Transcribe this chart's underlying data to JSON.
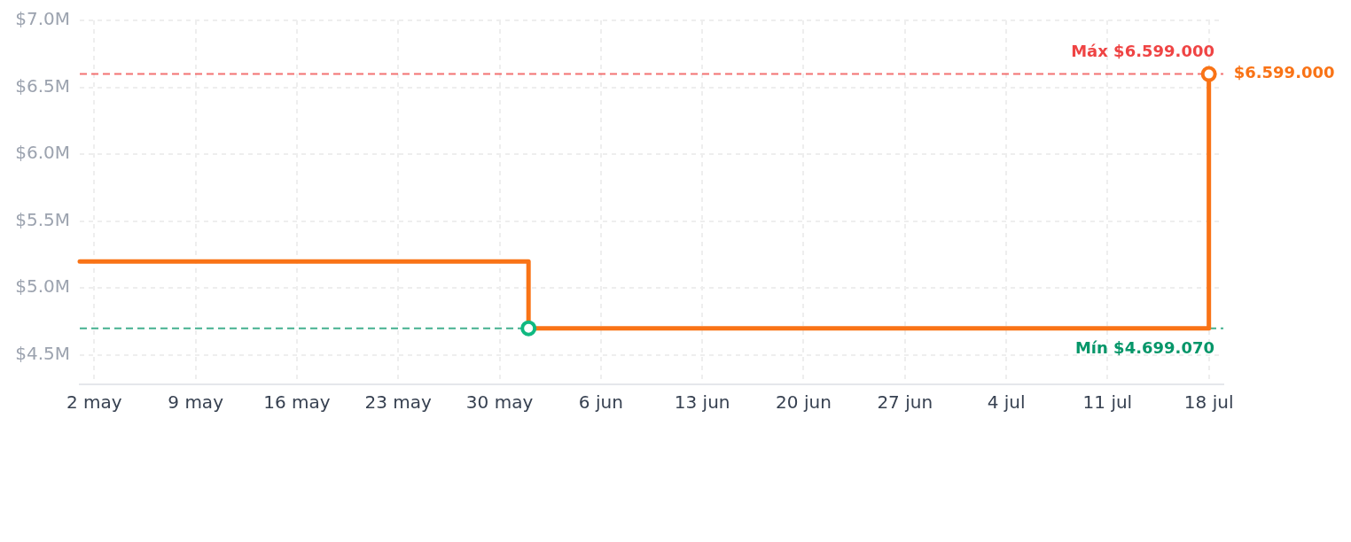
{
  "chart_data": {
    "type": "step",
    "marker": "none",
    "grid": true,
    "legend": false,
    "x": [
      "--05-01",
      "--06-01",
      "--07-18"
    ],
    "series": [
      {
        "color": "#f97316",
        "values": [
          5199000,
          4699070,
          6599000
        ]
      },
      {
        "type": "scatter",
        "marker": "circle",
        "color": "#f97316",
        "x": [
          "--07-18"
        ],
        "values": [
          6599000
        ]
      },
      {
        "type": "scatter",
        "marker": "circle",
        "color": "#10b981",
        "x": [
          "--06-01"
        ],
        "values": [
          4699070
        ]
      }
    ],
    "xlim": [
      "--05-01",
      "--07-19"
    ],
    "xticks": [
      {
        "value": "--05-02",
        "label": "2 may"
      },
      {
        "value": "--05-09",
        "label": "9 may"
      },
      {
        "value": "--05-16",
        "label": "16 may"
      },
      {
        "value": "--05-23",
        "label": "23 may"
      },
      {
        "value": "--05-30",
        "label": "30 may"
      },
      {
        "value": "--06-06",
        "label": "6 jun"
      },
      {
        "value": "--06-13",
        "label": "13 jun"
      },
      {
        "value": "--06-20",
        "label": "20 jun"
      },
      {
        "value": "--06-27",
        "label": "27 jun"
      },
      {
        "value": "--07-04",
        "label": "4 jul"
      },
      {
        "value": "--07-11",
        "label": "11 jul"
      },
      {
        "value": "--07-18",
        "label": "18 jul"
      }
    ],
    "ylim": [
      4280000,
      7000000
    ],
    "yticks": [
      {
        "value": 4500000,
        "label": "$4.5M"
      },
      {
        "value": 5000000,
        "label": "$5.0M"
      },
      {
        "value": 5500000,
        "label": "$5.5M"
      },
      {
        "value": 6000000,
        "label": "$6.0M"
      },
      {
        "value": 6500000,
        "label": "$6.5M"
      },
      {
        "value": 7000000,
        "label": "$7.0M"
      }
    ],
    "ref_lines": [
      {
        "axis": "y",
        "value": 6599000,
        "label": "Máx $6.599.000",
        "color": "#ef4444",
        "line_style": "dashed"
      },
      {
        "axis": "y",
        "value": 4699070,
        "label": "Mín $4.699.070",
        "color": "#059669",
        "line_style": "dashed"
      }
    ],
    "annotations": [
      {
        "text": "$6.599.000",
        "x": "--07-18",
        "y": 6599000
      }
    ]
  }
}
